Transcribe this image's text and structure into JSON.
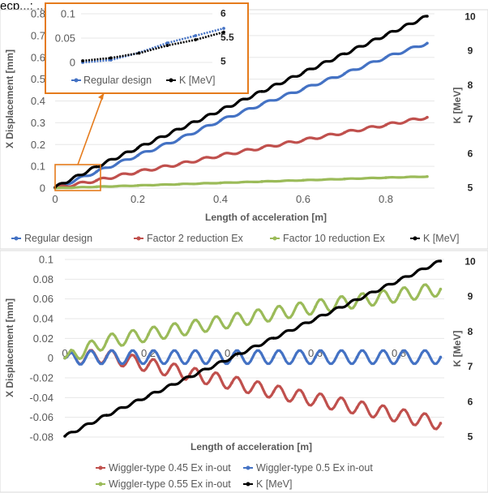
{
  "caption_fragment": "ecp...; ... ... ... ... ... ... ...g",
  "chart_data": [
    {
      "type": "line",
      "xlabel": "Length of acceleration [m]",
      "ylabel": "X Displacement [mm]",
      "y2label": "K [MeV]",
      "xlim": [
        0,
        1.0
      ],
      "ylim": [
        0,
        0.8
      ],
      "y2lim": [
        5,
        10
      ],
      "xticks": [
        "0",
        "0.2",
        "0.4",
        "0.6",
        "0.8"
      ],
      "yticks": [
        "0",
        "0.1",
        "0.2",
        "0.3",
        "0.4",
        "0.5",
        "0.6",
        "0.7",
        "0.8"
      ],
      "y2ticks": [
        "5",
        "6",
        "7",
        "8",
        "9",
        "10"
      ],
      "grid": true,
      "legend_position": "bottom",
      "series": [
        {
          "name": "Regular design",
          "color": "#4472c4",
          "axis": "left",
          "values": [
            [
              0,
              0
            ],
            [
              0.1,
              0.075
            ],
            [
              0.2,
              0.15
            ],
            [
              0.3,
              0.225
            ],
            [
              0.4,
              0.31
            ],
            [
              0.5,
              0.385
            ],
            [
              0.6,
              0.455
            ],
            [
              0.7,
              0.525
            ],
            [
              0.8,
              0.6
            ],
            [
              0.9,
              0.665
            ]
          ]
        },
        {
          "name": "Factor 2 reduction Ex",
          "color": "#c0504d",
          "axis": "left",
          "values": [
            [
              0,
              0
            ],
            [
              0.1,
              0.035
            ],
            [
              0.2,
              0.075
            ],
            [
              0.3,
              0.11
            ],
            [
              0.4,
              0.15
            ],
            [
              0.5,
              0.185
            ],
            [
              0.6,
              0.22
            ],
            [
              0.7,
              0.255
            ],
            [
              0.8,
              0.29
            ],
            [
              0.9,
              0.325
            ]
          ]
        },
        {
          "name": "Factor 10 reduction Ex",
          "color": "#9bbb59",
          "axis": "left",
          "values": [
            [
              0,
              0
            ],
            [
              0.1,
              0.006
            ],
            [
              0.2,
              0.012
            ],
            [
              0.3,
              0.018
            ],
            [
              0.4,
              0.024
            ],
            [
              0.5,
              0.03
            ],
            [
              0.6,
              0.036
            ],
            [
              0.7,
              0.042
            ],
            [
              0.8,
              0.048
            ],
            [
              0.9,
              0.053
            ]
          ]
        },
        {
          "name": "K [MeV]",
          "color": "#000000",
          "axis": "right",
          "values": [
            [
              0,
              5
            ],
            [
              0.1,
              5.6
            ],
            [
              0.2,
              6.15
            ],
            [
              0.3,
              6.7
            ],
            [
              0.4,
              7.25
            ],
            [
              0.5,
              7.8
            ],
            [
              0.6,
              8.35
            ],
            [
              0.7,
              8.9
            ],
            [
              0.8,
              9.45
            ],
            [
              0.9,
              10
            ]
          ]
        }
      ],
      "inset": {
        "xlim": [
          0,
          0.1
        ],
        "ylim": [
          0,
          0.1
        ],
        "y2lim": [
          5,
          6
        ],
        "yticks": [
          "0",
          "0.05",
          "0.1"
        ],
        "y2ticks": [
          "5",
          "5.5",
          "6"
        ],
        "series": [
          {
            "name": "Regular design",
            "color": "#4472c4",
            "axis": "left",
            "values": [
              [
                0,
                0
              ],
              [
                0.02,
                0.005
              ],
              [
                0.04,
                0.02
              ],
              [
                0.06,
                0.04
              ],
              [
                0.08,
                0.055
              ],
              [
                0.1,
                0.07
              ]
            ]
          },
          {
            "name": "K [MeV]",
            "color": "#000000",
            "axis": "right",
            "values": [
              [
                0,
                5
              ],
              [
                0.02,
                5.06
              ],
              [
                0.04,
                5.16
              ],
              [
                0.06,
                5.32
              ],
              [
                0.08,
                5.44
              ],
              [
                0.1,
                5.6
              ]
            ]
          }
        ]
      }
    },
    {
      "type": "line",
      "xlabel": "Length of acceleration [m]",
      "ylabel": "X Displacement [mm]",
      "y2label": "K [MeV]",
      "xlim": [
        0,
        1.0
      ],
      "ylim": [
        -0.08,
        0.1
      ],
      "y2lim": [
        5,
        10
      ],
      "xticks": [
        "0",
        "0.2",
        "0.4",
        "0.6",
        "0.8"
      ],
      "yticks": [
        "-0.08",
        "-0.06",
        "-0.04",
        "-0.02",
        "0",
        "0.02",
        "0.04",
        "0.06",
        "0.08",
        "0.1"
      ],
      "y2ticks": [
        "5",
        "6",
        "7",
        "8",
        "9",
        "10"
      ],
      "grid": true,
      "legend_position": "bottom",
      "series": [
        {
          "name": "Wiggler-type 0.45 Ex in-out",
          "color": "#c0504d",
          "axis": "left",
          "values": [
            [
              0,
              0
            ],
            [
              0.1,
              0.002
            ],
            [
              0.2,
              -0.007
            ],
            [
              0.3,
              -0.016
            ],
            [
              0.4,
              -0.025
            ],
            [
              0.5,
              -0.034
            ],
            [
              0.6,
              -0.042
            ],
            [
              0.7,
              -0.05
            ],
            [
              0.8,
              -0.058
            ],
            [
              0.9,
              -0.066
            ]
          ]
        },
        {
          "name": "Wiggler-type 0.5 Ex in-out",
          "color": "#4472c4",
          "axis": "left",
          "values": [
            [
              0,
              0
            ],
            [
              0.1,
              0.001
            ],
            [
              0.2,
              0.001
            ],
            [
              0.3,
              0.001
            ],
            [
              0.4,
              0.001
            ],
            [
              0.5,
              0.001
            ],
            [
              0.6,
              0.001
            ],
            [
              0.7,
              0.001
            ],
            [
              0.8,
              0.001
            ],
            [
              0.9,
              0.001
            ]
          ]
        },
        {
          "name": "Wiggler-type 0.55 Ex in-out",
          "color": "#9bbb59",
          "axis": "left",
          "values": [
            [
              0,
              0
            ],
            [
              0.1,
              0.017
            ],
            [
              0.2,
              0.024
            ],
            [
              0.3,
              0.031
            ],
            [
              0.4,
              0.038
            ],
            [
              0.5,
              0.045
            ],
            [
              0.6,
              0.052
            ],
            [
              0.7,
              0.058
            ],
            [
              0.8,
              0.064
            ],
            [
              0.9,
              0.07
            ]
          ]
        },
        {
          "name": "K [MeV]",
          "color": "#000000",
          "axis": "right",
          "values": [
            [
              0,
              5
            ],
            [
              0.1,
              5.6
            ],
            [
              0.2,
              6.15
            ],
            [
              0.3,
              6.7
            ],
            [
              0.4,
              7.25
            ],
            [
              0.5,
              7.8
            ],
            [
              0.6,
              8.35
            ],
            [
              0.7,
              8.9
            ],
            [
              0.8,
              9.45
            ],
            [
              0.9,
              10
            ]
          ]
        }
      ]
    }
  ]
}
